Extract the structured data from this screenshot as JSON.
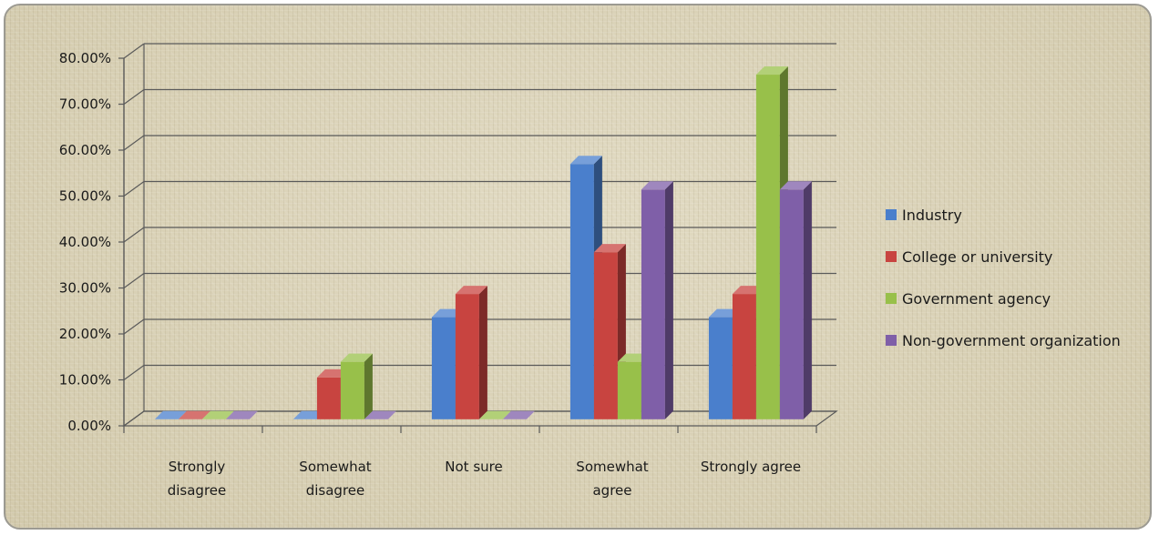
{
  "chart_data": {
    "type": "bar",
    "categories": [
      [
        "Strongly",
        "disagree"
      ],
      [
        "Somewhat",
        "disagree"
      ],
      [
        "Not sure"
      ],
      [
        "Somewhat",
        "agree"
      ],
      [
        "Strongly agree"
      ]
    ],
    "series": [
      {
        "name": "Industry",
        "values": [
          0.0,
          0.0,
          22.22,
          55.56,
          22.22
        ],
        "color": "#4a7fcc"
      },
      {
        "name": "College or university",
        "values": [
          0.0,
          9.09,
          27.27,
          36.36,
          27.27
        ],
        "color": "#c84440"
      },
      {
        "name": "Government agency",
        "values": [
          0.0,
          12.5,
          0.0,
          12.5,
          75.0
        ],
        "color": "#98c04a"
      },
      {
        "name": "Non-government organization",
        "values": [
          0.0,
          0.0,
          0.0,
          50.0,
          50.0
        ],
        "color": "#7f5fa8"
      }
    ],
    "ylim": [
      0,
      80
    ],
    "yticks": [
      "0.00%",
      "10.00%",
      "20.00%",
      "30.00%",
      "40.00%",
      "50.00%",
      "60.00%",
      "70.00%",
      "80.00%"
    ],
    "title": "",
    "xlabel": "",
    "ylabel": "",
    "legend_position": "right",
    "grid": true
  }
}
